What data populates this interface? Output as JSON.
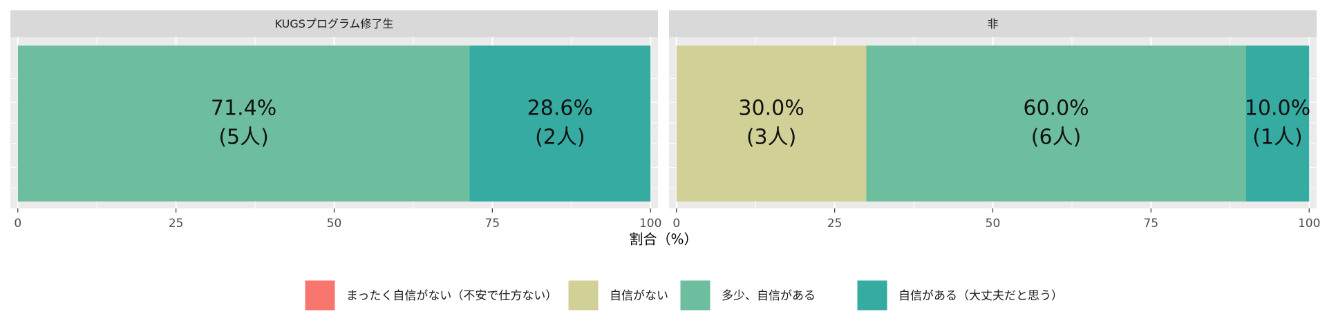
{
  "chart_data": {
    "type": "bar",
    "orientation": "horizontal-stacked",
    "xlabel": "割合（%）",
    "xlim": [
      0,
      100
    ],
    "x_ticks": [
      0,
      25,
      50,
      75,
      100
    ],
    "grid": true,
    "legend_position": "bottom",
    "legend": [
      {
        "key": "s1",
        "label": "まったく自信がない（不安で仕方ない）",
        "color": "#F8766D"
      },
      {
        "key": "s2",
        "label": "自信がない",
        "color": "#D1D197"
      },
      {
        "key": "s3",
        "label": "多少、自信がある",
        "color": "#6DBE9E"
      },
      {
        "key": "s4",
        "label": "自信がある（大丈夫だと思う）",
        "color": "#35ABA1"
      }
    ],
    "panels": [
      {
        "title": "KUGSプログラム修了生",
        "segments": [
          {
            "key": "s3",
            "value": 71.4,
            "pct_label": "71.4%",
            "n_label": "(5人)"
          },
          {
            "key": "s4",
            "value": 28.6,
            "pct_label": "28.6%",
            "n_label": "(2人)"
          }
        ]
      },
      {
        "title": "非",
        "segments": [
          {
            "key": "s2",
            "value": 30.0,
            "pct_label": "30.0%",
            "n_label": "(3人)"
          },
          {
            "key": "s3",
            "value": 60.0,
            "pct_label": "60.0%",
            "n_label": "(6人)"
          },
          {
            "key": "s4",
            "value": 10.0,
            "pct_label": "10.0%",
            "n_label": "(1人)"
          }
        ]
      }
    ]
  }
}
